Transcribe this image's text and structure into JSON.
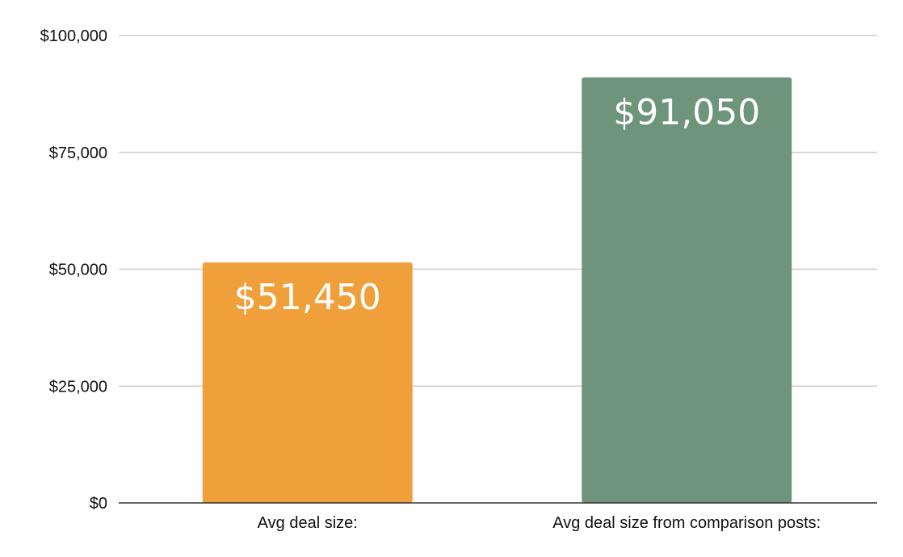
{
  "chart_data": {
    "type": "bar",
    "title": "",
    "xlabel": "",
    "ylabel": "",
    "categories": [
      "Avg deal size:",
      "Avg deal size from comparison posts:"
    ],
    "values": [
      51450,
      91050
    ],
    "data_labels": [
      "$51,450",
      "$91,050"
    ],
    "colors": [
      "#f0a03a",
      "#6e957b"
    ],
    "ylim": [
      0,
      100000
    ],
    "yticks": [
      0,
      25000,
      50000,
      75000,
      100000
    ],
    "ytick_labels": [
      "$0",
      "$25,000",
      "$50,000",
      "$75,000",
      "$100,000"
    ],
    "grid": true,
    "legend": "none",
    "grid_color": "#cccccc",
    "axis_color": "#333333"
  }
}
